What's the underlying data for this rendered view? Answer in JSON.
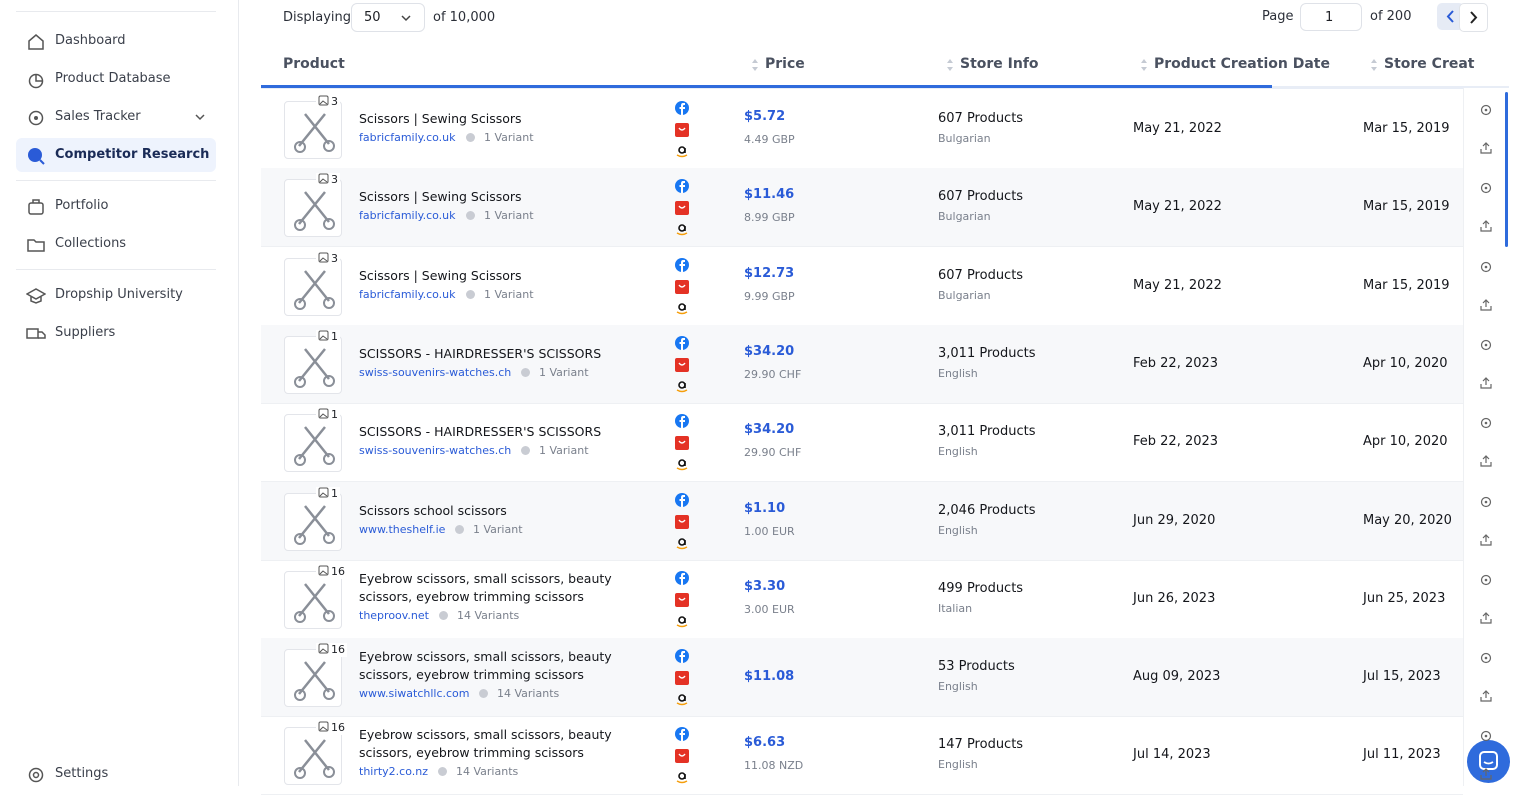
{
  "sidebar": {
    "items": [
      "Dashboard",
      "Product Database",
      "Sales Tracker",
      "Competitor Research",
      "Portfolio",
      "Collections",
      "Dropship University",
      "Suppliers"
    ],
    "settings": "Settings"
  },
  "toolbar": {
    "displaying": "Displaying",
    "per_page": "50",
    "total": "of 10,000",
    "page_label": "Page",
    "page": "1",
    "pages": "of 200"
  },
  "table": {
    "headers": [
      "Product",
      "Price",
      "Store Info",
      "Product Creation Date",
      "Store Creat"
    ],
    "rows": [
      {
        "images": "3",
        "title": "Scissors | Sewing Scissors",
        "store": "fabricfamily.co.uk",
        "variants": "1 Variant",
        "price": "$5.72",
        "original_price": "4.49 GBP",
        "products": "607 Products",
        "language": "Bulgarian",
        "created": "May 21, 2022",
        "store_created": "Mar 15, 2019"
      },
      {
        "images": "3",
        "title": "Scissors | Sewing Scissors",
        "store": "fabricfamily.co.uk",
        "variants": "1 Variant",
        "price": "$11.46",
        "original_price": "8.99 GBP",
        "products": "607 Products",
        "language": "Bulgarian",
        "created": "May 21, 2022",
        "store_created": "Mar 15, 2019"
      },
      {
        "images": "3",
        "title": "Scissors | Sewing Scissors",
        "store": "fabricfamily.co.uk",
        "variants": "1 Variant",
        "price": "$12.73",
        "original_price": "9.99 GBP",
        "products": "607 Products",
        "language": "Bulgarian",
        "created": "May 21, 2022",
        "store_created": "Mar 15, 2019"
      },
      {
        "images": "1",
        "title": "SCISSORS - HAIRDRESSER'S SCISSORS",
        "store": "swiss-souvenirs-watches.ch",
        "variants": "1 Variant",
        "price": "$34.20",
        "original_price": "29.90 CHF",
        "products": "3,011 Products",
        "language": "English",
        "created": "Feb 22, 2023",
        "store_created": "Apr 10, 2020"
      },
      {
        "images": "1",
        "title": "SCISSORS - HAIRDRESSER'S SCISSORS",
        "store": "swiss-souvenirs-watches.ch",
        "variants": "1 Variant",
        "price": "$34.20",
        "original_price": "29.90 CHF",
        "products": "3,011 Products",
        "language": "English",
        "created": "Feb 22, 2023",
        "store_created": "Apr 10, 2020"
      },
      {
        "images": "1",
        "title": "Scissors school scissors",
        "store": "www.theshelf.ie",
        "variants": "1 Variant",
        "price": "$1.10",
        "original_price": "1.00 EUR",
        "products": "2,046 Products",
        "language": "English",
        "created": "Jun 29, 2020",
        "store_created": "May 20, 2020"
      },
      {
        "images": "16",
        "title": "Eyebrow scissors, small scissors, beauty scissors, eyebrow trimming scissors",
        "store": "theproov.net",
        "variants": "14 Variants",
        "price": "$3.30",
        "original_price": "3.00 EUR",
        "products": "499 Products",
        "language": "Italian",
        "created": "Jun 26, 2023",
        "store_created": "Jun 25, 2023"
      },
      {
        "images": "16",
        "title": "Eyebrow scissors, small scissors, beauty scissors, eyebrow trimming scissors",
        "store": "www.siwatchllc.com",
        "variants": "14 Variants",
        "price": "$11.08",
        "products": "53 Products",
        "language": "English",
        "created": "Aug 09, 2023",
        "store_created": "Jul 15, 2023"
      },
      {
        "images": "16",
        "title": "Eyebrow scissors, small scissors, beauty scissors, eyebrow trimming scissors",
        "store": "thirty2.co.nz",
        "variants": "14 Variants",
        "price": "$6.63",
        "original_price": "11.08 NZD",
        "products": "147 Products",
        "language": "English",
        "created": "Jul 14, 2023",
        "store_created": "Jul 11, 2023"
      }
    ]
  }
}
